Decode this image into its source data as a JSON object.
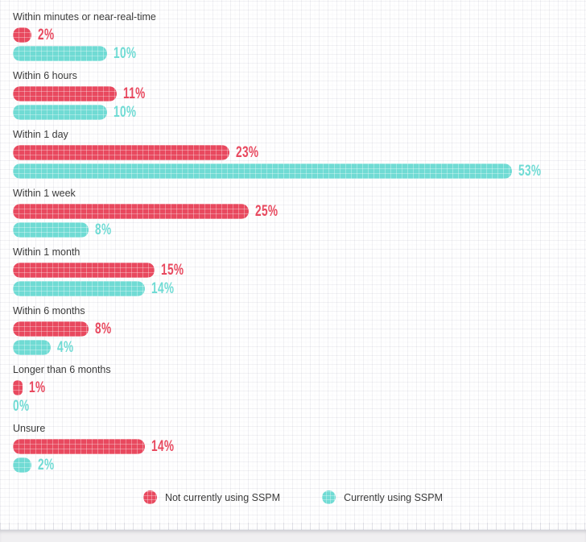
{
  "chart_data": {
    "type": "bar",
    "orientation": "horizontal",
    "categories": [
      "Within minutes or near-real-time",
      "Within 6 hours",
      "Within 1 day",
      "Within 1 week",
      "Within 1 month",
      "Within 6 months",
      "Longer than 6 months",
      "Unsure"
    ],
    "series": [
      {
        "name": "Not currently using SSPM",
        "color": "#e8495f",
        "values": [
          2,
          11,
          23,
          25,
          15,
          8,
          1,
          14
        ]
      },
      {
        "name": "Currently using SSPM",
        "color": "#70dbd4",
        "values": [
          10,
          10,
          53,
          8,
          14,
          4,
          0,
          2
        ]
      }
    ],
    "value_suffix": "%",
    "xlim": [
      0,
      53
    ],
    "grid": true,
    "legend_position": "bottom"
  },
  "colors": {
    "category_text": "#3b3b3b",
    "background": "#ffffff",
    "footer_strip": "#f0eff1"
  }
}
